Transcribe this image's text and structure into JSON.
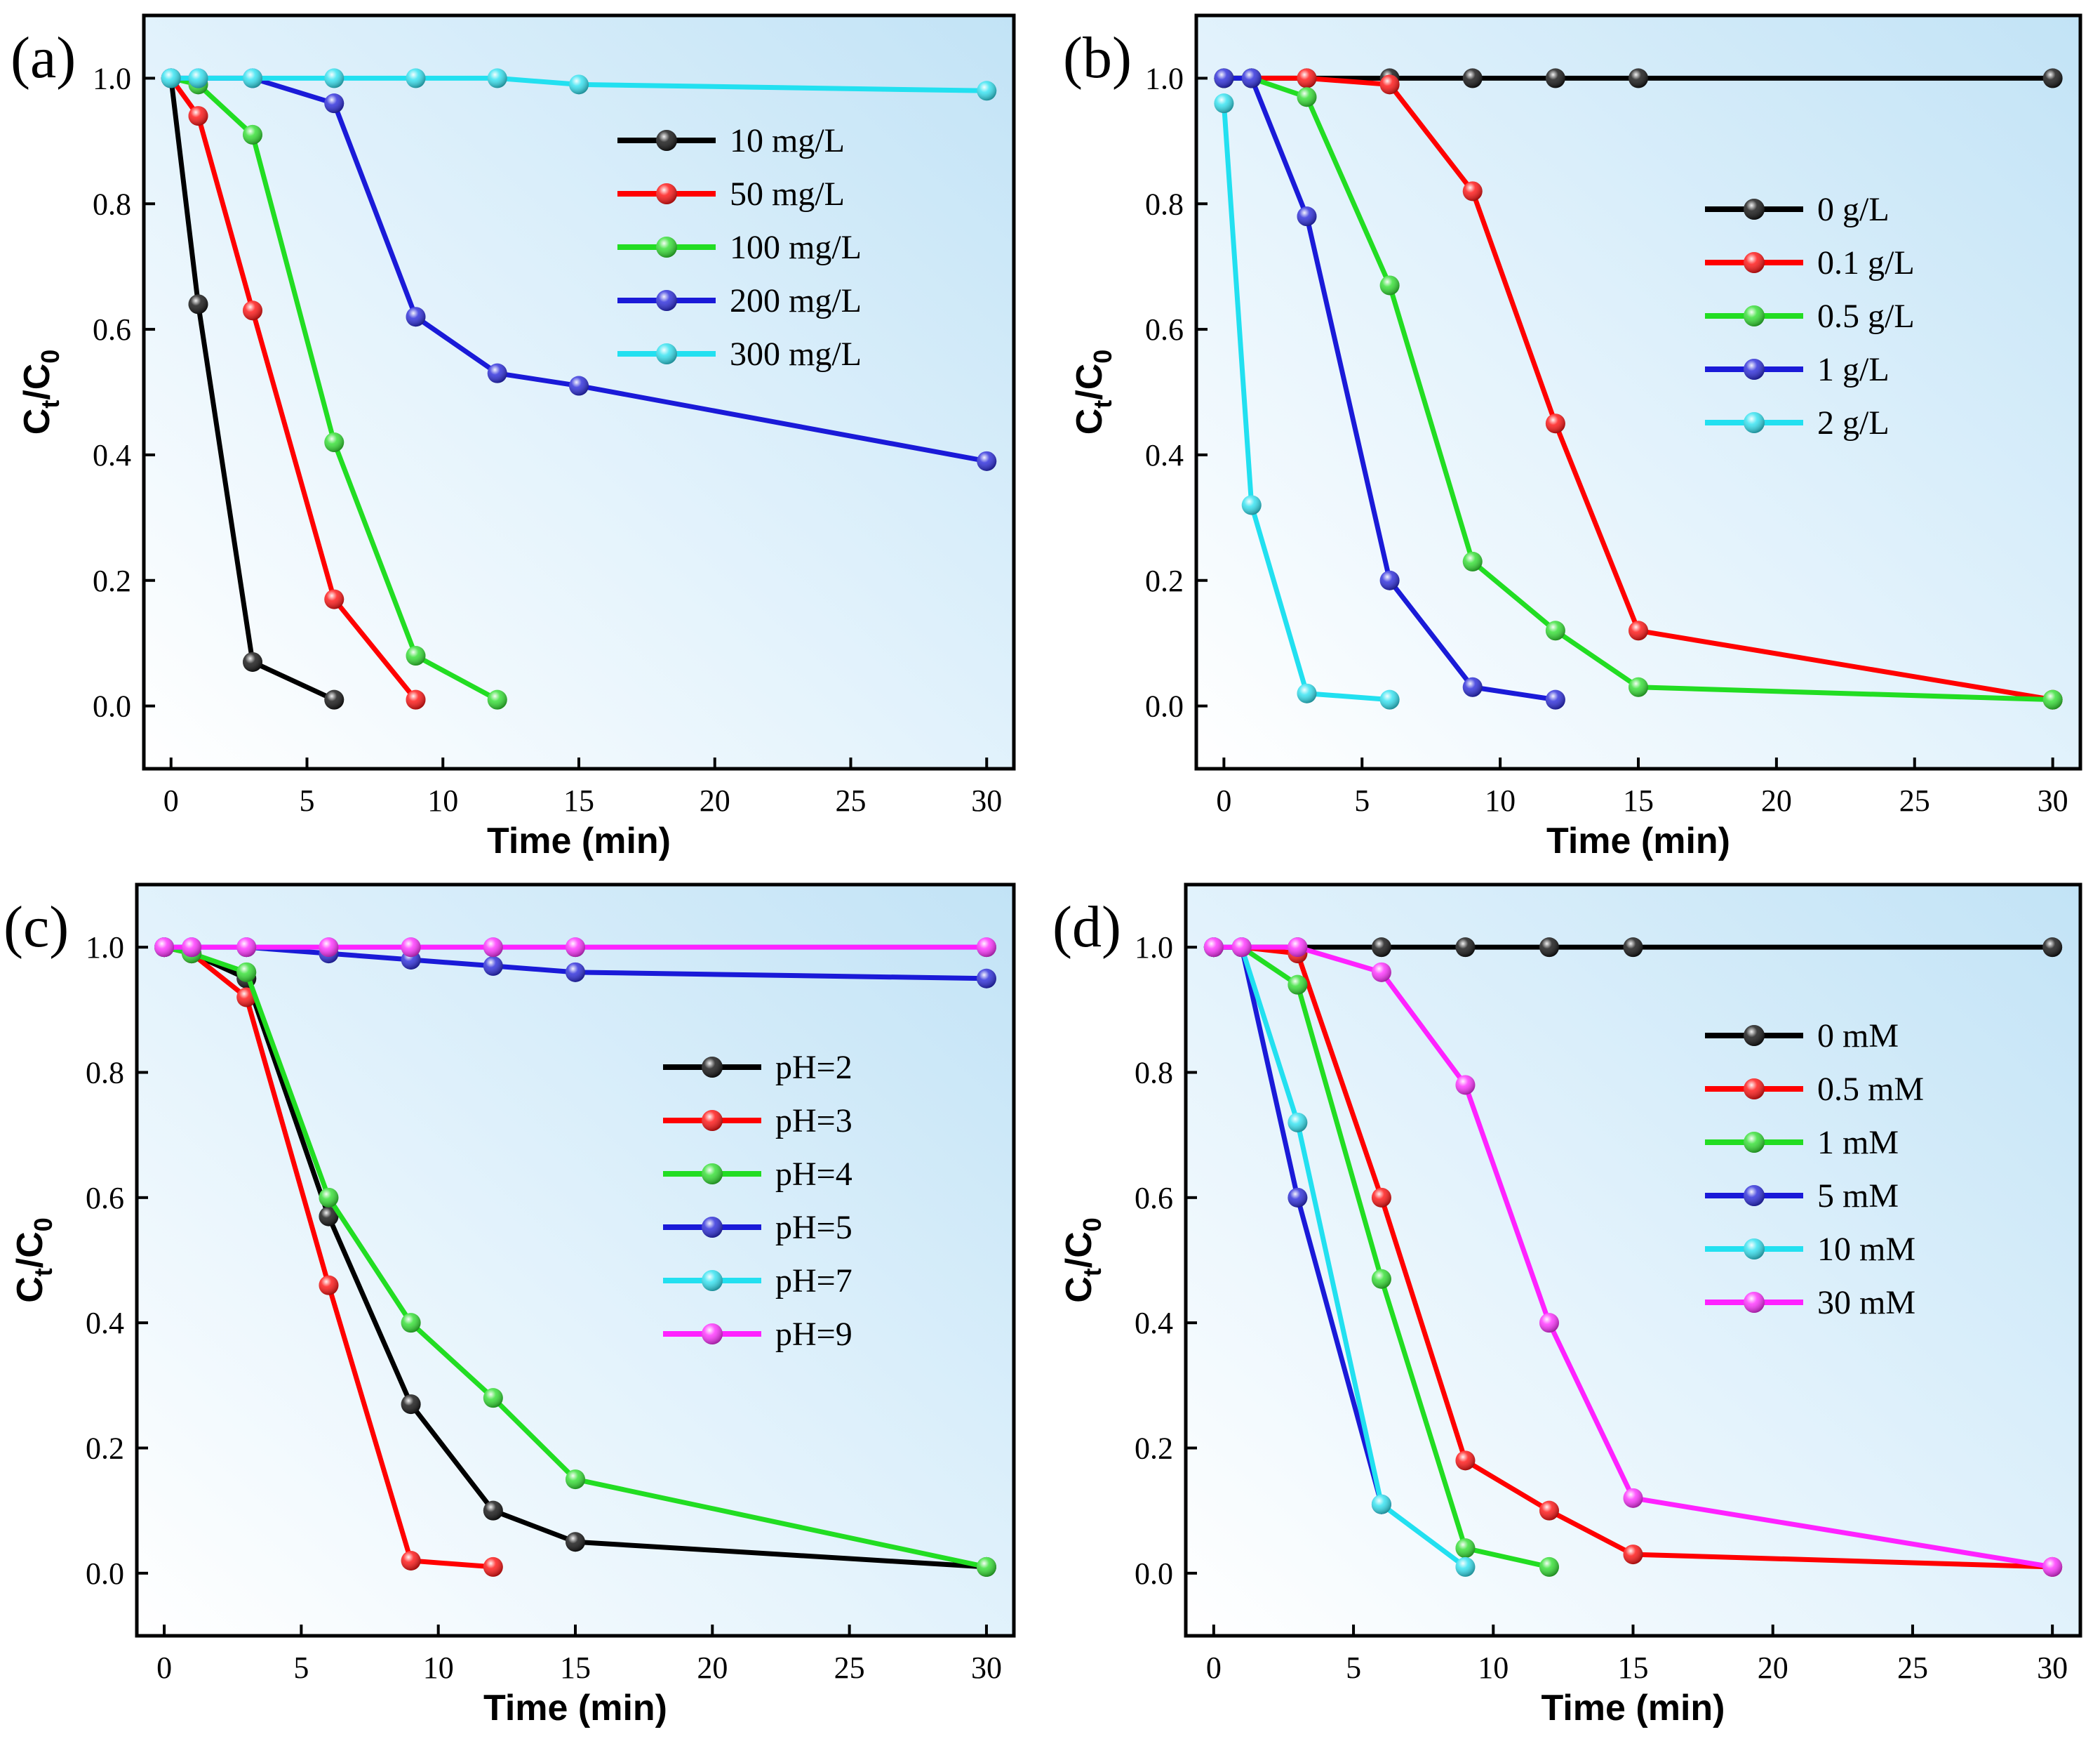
{
  "chart_data": [
    {
      "panel_label": "(a)",
      "type": "line",
      "xlabel": "Time (min)",
      "ylabel": {
        "main": "C",
        "sub_t": "t",
        "slash": "/C",
        "sub_0": "0"
      },
      "xlim": [
        -1,
        31
      ],
      "ylim": [
        -0.1,
        1.1
      ],
      "xticks": [
        "0",
        "5",
        "10",
        "15",
        "20",
        "25",
        "30"
      ],
      "yticks": [
        "0.0",
        "0.2",
        "0.4",
        "0.6",
        "0.8",
        "1.0"
      ],
      "legend_position": "top-right",
      "series": [
        {
          "name": "10 mg/L",
          "color": "#000000",
          "x": [
            0,
            1,
            3,
            6
          ],
          "y": [
            1.0,
            0.64,
            0.07,
            0.01
          ]
        },
        {
          "name": "50 mg/L",
          "color": "#ff0000",
          "x": [
            0,
            1,
            3,
            6,
            9
          ],
          "y": [
            1.0,
            0.94,
            0.63,
            0.17,
            0.01
          ]
        },
        {
          "name": "100 mg/L",
          "color": "#22dd22",
          "x": [
            0,
            1,
            3,
            6,
            9,
            12
          ],
          "y": [
            1.0,
            0.99,
            0.91,
            0.42,
            0.08,
            0.01
          ]
        },
        {
          "name": "200 mg/L",
          "color": "#1a1ad8",
          "x": [
            0,
            1,
            3,
            6,
            9,
            12,
            15,
            30
          ],
          "y": [
            1.0,
            1.0,
            1.0,
            0.96,
            0.62,
            0.53,
            0.51,
            0.39
          ]
        },
        {
          "name": "300 mg/L",
          "color": "#22e0f0",
          "x": [
            0,
            1,
            3,
            6,
            9,
            12,
            15,
            30
          ],
          "y": [
            1.0,
            1.0,
            1.0,
            1.0,
            1.0,
            1.0,
            0.99,
            0.98
          ]
        }
      ]
    },
    {
      "panel_label": "(b)",
      "type": "line",
      "xlabel": "Time (min)",
      "ylabel": {
        "main": "C",
        "sub_t": "t",
        "slash": "/C",
        "sub_0": "0"
      },
      "xlim": [
        -1,
        31
      ],
      "ylim": [
        -0.1,
        1.1
      ],
      "xticks": [
        "0",
        "5",
        "10",
        "15",
        "20",
        "25",
        "30"
      ],
      "yticks": [
        "0.0",
        "0.2",
        "0.4",
        "0.6",
        "0.8",
        "1.0"
      ],
      "legend_position": "center-right",
      "series": [
        {
          "name": "0 g/L",
          "color": "#000000",
          "x": [
            0,
            1,
            3,
            6,
            9,
            12,
            15,
            30
          ],
          "y": [
            1.0,
            1.0,
            1.0,
            1.0,
            1.0,
            1.0,
            1.0,
            1.0
          ]
        },
        {
          "name": "0.1 g/L",
          "color": "#ff0000",
          "x": [
            0,
            1,
            3,
            6,
            9,
            12,
            15,
            30
          ],
          "y": [
            1.0,
            1.0,
            1.0,
            0.99,
            0.82,
            0.45,
            0.12,
            0.01
          ]
        },
        {
          "name": "0.5 g/L",
          "color": "#22dd22",
          "x": [
            0,
            1,
            3,
            6,
            9,
            12,
            15,
            30
          ],
          "y": [
            1.0,
            1.0,
            0.97,
            0.67,
            0.23,
            0.12,
            0.03,
            0.01
          ]
        },
        {
          "name": "1 g/L",
          "color": "#1a1ad8",
          "x": [
            0,
            1,
            3,
            6,
            9,
            12
          ],
          "y": [
            1.0,
            1.0,
            0.78,
            0.2,
            0.03,
            0.01
          ]
        },
        {
          "name": "2 g/L",
          "color": "#22e0f0",
          "x": [
            0,
            1,
            3,
            6
          ],
          "y": [
            0.96,
            0.32,
            0.02,
            0.01
          ]
        }
      ]
    },
    {
      "panel_label": "(c)",
      "type": "line",
      "xlabel": "Time (min)",
      "ylabel": {
        "main": "C",
        "sub_t": "t",
        "slash": "/C",
        "sub_0": "0"
      },
      "xlim": [
        -1,
        31
      ],
      "ylim": [
        -0.1,
        1.1
      ],
      "xticks": [
        "0",
        "5",
        "10",
        "15",
        "20",
        "25",
        "30"
      ],
      "yticks": [
        "0.0",
        "0.2",
        "0.4",
        "0.6",
        "0.8",
        "1.0"
      ],
      "legend_position": "center-right",
      "series": [
        {
          "name": "pH=2",
          "color": "#000000",
          "x": [
            0,
            1,
            3,
            6,
            9,
            12,
            15,
            30
          ],
          "y": [
            1.0,
            0.99,
            0.95,
            0.57,
            0.27,
            0.1,
            0.05,
            0.01
          ]
        },
        {
          "name": "pH=3",
          "color": "#ff0000",
          "x": [
            0,
            1,
            3,
            6,
            9,
            12
          ],
          "y": [
            1.0,
            0.99,
            0.92,
            0.46,
            0.02,
            0.01
          ]
        },
        {
          "name": "pH=4",
          "color": "#22dd22",
          "x": [
            0,
            1,
            3,
            6,
            9,
            12,
            15,
            30
          ],
          "y": [
            1.0,
            0.99,
            0.96,
            0.6,
            0.4,
            0.28,
            0.15,
            0.01
          ]
        },
        {
          "name": "pH=5",
          "color": "#1a1ad8",
          "x": [
            0,
            1,
            3,
            6,
            9,
            12,
            15,
            30
          ],
          "y": [
            1.0,
            1.0,
            1.0,
            0.99,
            0.98,
            0.97,
            0.96,
            0.95
          ]
        },
        {
          "name": "pH=7",
          "color": "#22e0f0",
          "x": [
            0,
            1,
            3,
            6,
            9,
            12,
            15,
            30
          ],
          "y": [
            1.0,
            1.0,
            1.0,
            1.0,
            1.0,
            1.0,
            1.0,
            1.0
          ]
        },
        {
          "name": "pH=9",
          "color": "#ff22ff",
          "x": [
            0,
            1,
            3,
            6,
            9,
            12,
            15,
            30
          ],
          "y": [
            1.0,
            1.0,
            1.0,
            1.0,
            1.0,
            1.0,
            1.0,
            1.0
          ]
        }
      ]
    },
    {
      "panel_label": "(d)",
      "type": "line",
      "xlabel": "Time (min)",
      "ylabel": {
        "main": "C",
        "sub_t": "t",
        "slash": "/C",
        "sub_0": "0"
      },
      "xlim": [
        -1,
        31
      ],
      "ylim": [
        -0.1,
        1.1
      ],
      "xticks": [
        "0",
        "5",
        "10",
        "15",
        "20",
        "25",
        "30"
      ],
      "yticks": [
        "0.0",
        "0.2",
        "0.4",
        "0.6",
        "0.8",
        "1.0"
      ],
      "legend_position": "center-right",
      "series": [
        {
          "name": "0 mM",
          "color": "#000000",
          "x": [
            0,
            1,
            3,
            6,
            9,
            12,
            15,
            30
          ],
          "y": [
            1.0,
            1.0,
            1.0,
            1.0,
            1.0,
            1.0,
            1.0,
            1.0
          ]
        },
        {
          "name": "0.5 mM",
          "color": "#ff0000",
          "x": [
            0,
            1,
            3,
            6,
            9,
            12,
            15,
            30
          ],
          "y": [
            1.0,
            1.0,
            0.99,
            0.6,
            0.18,
            0.1,
            0.03,
            0.01
          ]
        },
        {
          "name": "1 mM",
          "color": "#22dd22",
          "x": [
            0,
            1,
            3,
            6,
            9,
            12
          ],
          "y": [
            1.0,
            1.0,
            0.94,
            0.47,
            0.04,
            0.01
          ]
        },
        {
          "name": "5 mM",
          "color": "#1a1ad8",
          "x": [
            0,
            1,
            3,
            6
          ],
          "y": [
            1.0,
            1.0,
            0.6,
            0.11
          ]
        },
        {
          "name": "10 mM",
          "color": "#22e0f0",
          "x": [
            0,
            1,
            3,
            6,
            9
          ],
          "y": [
            1.0,
            1.0,
            0.72,
            0.11,
            0.01
          ]
        },
        {
          "name": "30 mM",
          "color": "#ff22ff",
          "x": [
            0,
            1,
            3,
            6,
            9,
            12,
            15,
            30
          ],
          "y": [
            1.0,
            1.0,
            1.0,
            0.96,
            0.78,
            0.4,
            0.12,
            0.01
          ]
        }
      ]
    }
  ]
}
